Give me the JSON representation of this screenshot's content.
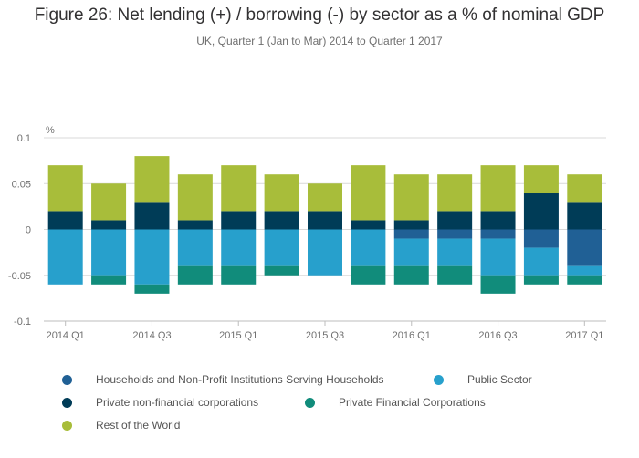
{
  "title": "Figure 26: Net lending (+) / borrowing (-) by sector as a % of nominal GDP",
  "subtitle": "UK, Quarter 1 (Jan to Mar) 2014 to Quarter 1 2017",
  "chart_data": {
    "type": "bar",
    "stacked": true,
    "ylabel": "%",
    "ylim": [
      -0.1,
      0.1
    ],
    "yticks": [
      "0.1",
      "0.05",
      "0",
      "-0.05",
      "-0.1"
    ],
    "ytick_values": [
      0.1,
      0.05,
      0,
      -0.05,
      -0.1
    ],
    "categories": [
      "2014 Q1",
      "2014 Q2",
      "2014 Q3",
      "2014 Q4",
      "2015 Q1",
      "2015 Q2",
      "2015 Q3",
      "2015 Q4",
      "2016 Q1",
      "2016 Q2",
      "2016 Q3",
      "2016 Q4",
      "2017 Q1"
    ],
    "xtick_labels": [
      "2014 Q1",
      "",
      "2014 Q3",
      "",
      "2015 Q1",
      "",
      "2015 Q3",
      "",
      "2016 Q1",
      "",
      "2016 Q3",
      "",
      "2017 Q1"
    ],
    "grid": true,
    "legend_position": "bottom",
    "series": [
      {
        "name": "Households and Non-Profit Institutions Serving Households",
        "color": "#206095",
        "values": [
          0,
          0,
          0,
          0,
          0,
          0,
          0,
          0,
          -0.01,
          -0.01,
          -0.01,
          -0.02,
          -0.04
        ]
      },
      {
        "name": "Public Sector",
        "color": "#27a0cc",
        "values": [
          -0.06,
          -0.05,
          -0.06,
          -0.04,
          -0.04,
          -0.04,
          -0.05,
          -0.04,
          -0.03,
          -0.03,
          -0.04,
          -0.03,
          -0.01
        ]
      },
      {
        "name": "Private non-financial corporations",
        "color": "#003c57",
        "values": [
          0.02,
          0.01,
          0.03,
          0.01,
          0.02,
          0.02,
          0.02,
          0.01,
          0.01,
          0.02,
          0.02,
          0.04,
          0.03
        ]
      },
      {
        "name": "Private Financial Corporations",
        "color": "#118c7b",
        "values": [
          0,
          -0.01,
          -0.01,
          -0.02,
          -0.02,
          -0.01,
          0,
          -0.02,
          -0.02,
          -0.02,
          -0.02,
          -0.01,
          -0.01
        ]
      },
      {
        "name": "Rest of the World",
        "color": "#a8bd3a",
        "values": [
          0.05,
          0.04,
          0.05,
          0.05,
          0.05,
          0.04,
          0.03,
          0.06,
          0.05,
          0.04,
          0.05,
          0.03,
          0.03
        ]
      }
    ]
  }
}
